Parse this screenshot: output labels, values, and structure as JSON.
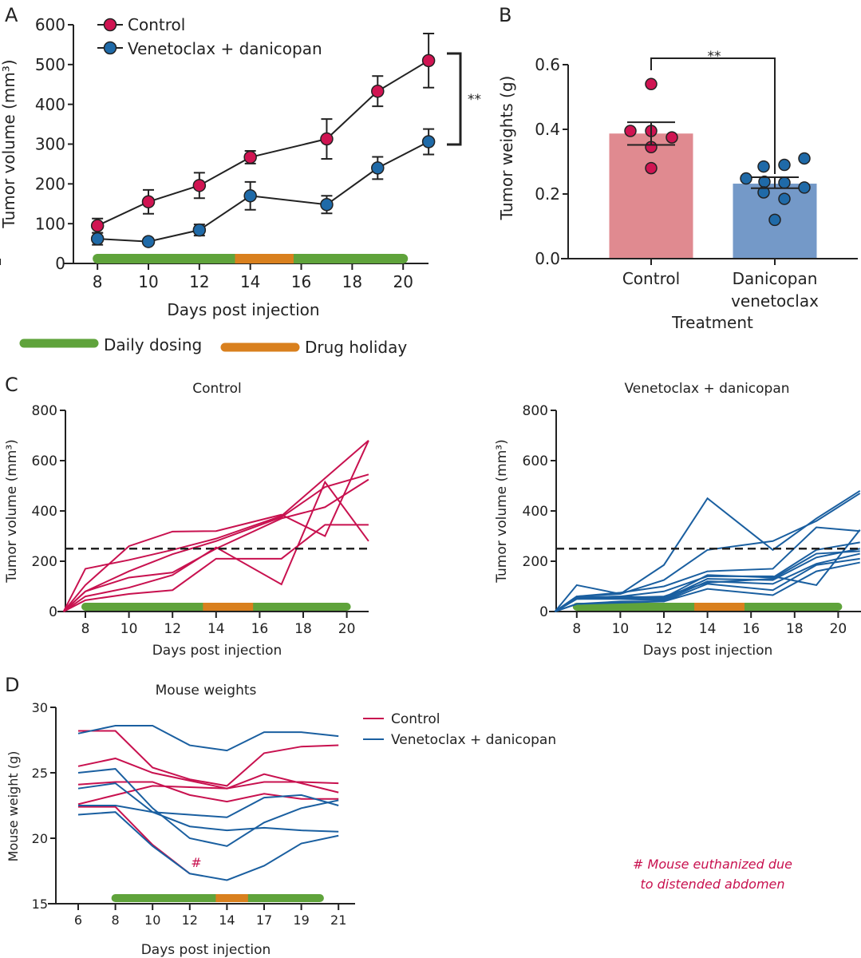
{
  "panel_labels": {
    "a": "A",
    "b": "B",
    "c": "C",
    "d": "D"
  },
  "colors": {
    "control": "#c8114f",
    "treated": "#1a5fa0",
    "control_marker": "#d01452",
    "treated_marker": "#1f6aa8",
    "control_bar": "#e08a90",
    "treated_bar": "#7499c8",
    "dosing": "#5fa33b",
    "holiday": "#d9801e"
  },
  "dosing_schedule": {
    "phases": [
      {
        "label": "Daily dosing",
        "start_day": 8,
        "end_day": 13.4,
        "color": "#5fa33b"
      },
      {
        "label": "Drug holiday",
        "start_day": 13.4,
        "end_day": 15.7,
        "color": "#d9801e"
      },
      {
        "label": "Daily dosing",
        "start_day": 15.7,
        "end_day": 20,
        "color": "#5fa33b"
      }
    ],
    "legend": [
      {
        "label": "Daily dosing",
        "color": "#5fa33b"
      },
      {
        "label": "Drug holiday",
        "color": "#d9801e"
      }
    ]
  },
  "chart_data": [
    {
      "panel": "A",
      "type": "line",
      "xlabel": "Days post injection",
      "ylabel": "Tumor volume (mm³)",
      "ylim": [
        0,
        600
      ],
      "yticks": [
        "0",
        "100",
        "200",
        "300",
        "400",
        "500",
        "600"
      ],
      "xticks": [
        "8",
        "10",
        "12",
        "14",
        "16",
        "18",
        "20"
      ],
      "legend_position": "top-left",
      "grid": false,
      "significance": "**",
      "series": [
        {
          "name": "Control",
          "x": [
            8,
            10,
            12,
            14,
            17,
            19,
            21
          ],
          "y": [
            95,
            155,
            196,
            267,
            313,
            433,
            510
          ],
          "err": [
            18,
            30,
            32,
            16,
            50,
            38,
            68
          ]
        },
        {
          "name": "Venetoclax + danicopan",
          "x": [
            8,
            10,
            12,
            14,
            17,
            19,
            21
          ],
          "y": [
            62,
            55,
            84,
            170,
            148,
            240,
            306
          ],
          "err": [
            15,
            6,
            14,
            35,
            22,
            28,
            32
          ]
        }
      ]
    },
    {
      "panel": "B",
      "type": "bar",
      "xlabel": "Treatment",
      "ylabel": "Tumor weights (g)",
      "ylim": [
        0,
        0.6
      ],
      "yticks": [
        "0.0",
        "0.2",
        "0.4",
        "0.6"
      ],
      "categories": [
        "Control",
        "Danicopan venetoclax"
      ],
      "category_lines": [
        [
          "Control"
        ],
        [
          "Danicopan",
          "venetoclax"
        ]
      ],
      "significance": "**",
      "values": [
        0.387,
        0.232
      ],
      "sem": [
        [
          0.352,
          0.422
        ],
        [
          0.218,
          0.252
        ]
      ],
      "points": [
        [
          0.54,
          0.395,
          0.395,
          0.375,
          0.345,
          0.28
        ],
        [
          0.31,
          0.29,
          0.285,
          0.248,
          0.238,
          0.235,
          0.22,
          0.205,
          0.185,
          0.12
        ]
      ]
    },
    {
      "panel": "C",
      "type": "line",
      "title": "Control",
      "xlabel": "Days post injection",
      "ylabel": "Tumor volume (mm³)",
      "ylim": [
        0,
        800
      ],
      "yticks": [
        "0",
        "200",
        "400",
        "600",
        "800"
      ],
      "xticks": [
        "8",
        "10",
        "12",
        "14",
        "16",
        "18",
        "20"
      ],
      "threshold": 250,
      "x": [
        7,
        8,
        10,
        12,
        14,
        17,
        19,
        21
      ],
      "series": [
        {
          "y": [
            0,
            170,
            205,
            245,
            290,
            380,
            530,
            680
          ]
        },
        {
          "y": [
            0,
            105,
            260,
            318,
            320,
            385,
            300,
            680
          ]
        },
        {
          "y": [
            0,
            80,
            160,
            228,
            280,
            375,
            495,
            545
          ]
        },
        {
          "y": [
            0,
            60,
            95,
            145,
            255,
            108,
            515,
            280
          ]
        },
        {
          "y": [
            0,
            45,
            70,
            85,
            210,
            210,
            345,
            345
          ]
        },
        {
          "y": [
            0,
            80,
            135,
            155,
            250,
            370,
            415,
            525
          ]
        }
      ]
    },
    {
      "panel": "C",
      "type": "line",
      "title": "Venetoclax + danicopan",
      "xlabel": "Days post injection",
      "ylabel": "Tumor volume (mm³)",
      "ylim": [
        0,
        800
      ],
      "yticks": [
        "0",
        "200",
        "400",
        "600",
        "800"
      ],
      "xticks": [
        "8",
        "10",
        "12",
        "14",
        "16",
        "18",
        "20"
      ],
      "threshold": 250,
      "x": [
        7,
        8,
        10,
        12,
        14,
        17,
        19,
        21
      ],
      "series": [
        {
          "y": [
            0,
            105,
            70,
            185,
            450,
            245,
            370,
            480
          ]
        },
        {
          "y": [
            0,
            60,
            70,
            125,
            245,
            280,
            360,
            470
          ]
        },
        {
          "y": [
            0,
            60,
            75,
            100,
            160,
            170,
            335,
            320
          ]
        },
        {
          "y": [
            0,
            55,
            60,
            80,
            140,
            140,
            105,
            325
          ]
        },
        {
          "y": [
            0,
            55,
            60,
            55,
            145,
            135,
            245,
            275
          ]
        },
        {
          "y": [
            0,
            50,
            55,
            50,
            130,
            125,
            215,
            250
          ]
        },
        {
          "y": [
            0,
            50,
            50,
            45,
            120,
            110,
            190,
            230
          ]
        },
        {
          "y": [
            0,
            30,
            40,
            40,
            110,
            85,
            185,
            210
          ]
        },
        {
          "y": [
            0,
            30,
            35,
            40,
            90,
            65,
            160,
            195
          ]
        },
        {
          "y": [
            0,
            60,
            55,
            60,
            115,
            130,
            230,
            240
          ]
        }
      ]
    },
    {
      "panel": "D",
      "type": "line",
      "title": "Mouse weights",
      "xlabel": "Days post injection",
      "ylabel": "Mouse weight (g)",
      "ylim": [
        15,
        30
      ],
      "yticks": [
        "15",
        "20",
        "25",
        "30"
      ],
      "categories": [
        "6",
        "8",
        "10",
        "12",
        "14",
        "17",
        "19",
        "21"
      ],
      "legend_position": "right",
      "annotation_mark": "#",
      "annotation": [
        "# Mouse euthanized due",
        "to distended abdomen"
      ],
      "series": [
        {
          "name": "Control",
          "lines": [
            [
              28.2,
              28.2,
              25.4,
              24.5,
              24.0,
              26.5,
              27.0,
              27.1
            ],
            [
              25.5,
              26.1,
              25.0,
              24.4,
              23.8,
              24.9,
              24.2,
              23.5
            ],
            [
              24.1,
              24.3,
              24.3,
              23.3,
              22.8,
              23.4,
              23.0,
              23.0
            ],
            [
              22.6,
              23.3,
              24.0,
              23.9,
              23.8,
              24.3,
              24.3,
              24.2
            ],
            [
              22.4,
              22.4,
              19.5,
              17.3
            ]
          ]
        },
        {
          "name": "Venetoclax + danicopan",
          "lines": [
            [
              28.0,
              28.6,
              28.6,
              27.1,
              26.7,
              28.1,
              28.1,
              27.8
            ],
            [
              25.0,
              25.3,
              22.3,
              20.0,
              19.4,
              21.2,
              22.3,
              22.9
            ],
            [
              23.8,
              24.2,
              22.0,
              20.9,
              20.6,
              20.8,
              20.6,
              20.5
            ],
            [
              22.5,
              22.5,
              22.0,
              21.8,
              21.6,
              23.1,
              23.3,
              22.5
            ],
            [
              21.8,
              22.0,
              19.4,
              17.3,
              16.8,
              17.9,
              19.6,
              20.2
            ]
          ]
        }
      ]
    }
  ]
}
